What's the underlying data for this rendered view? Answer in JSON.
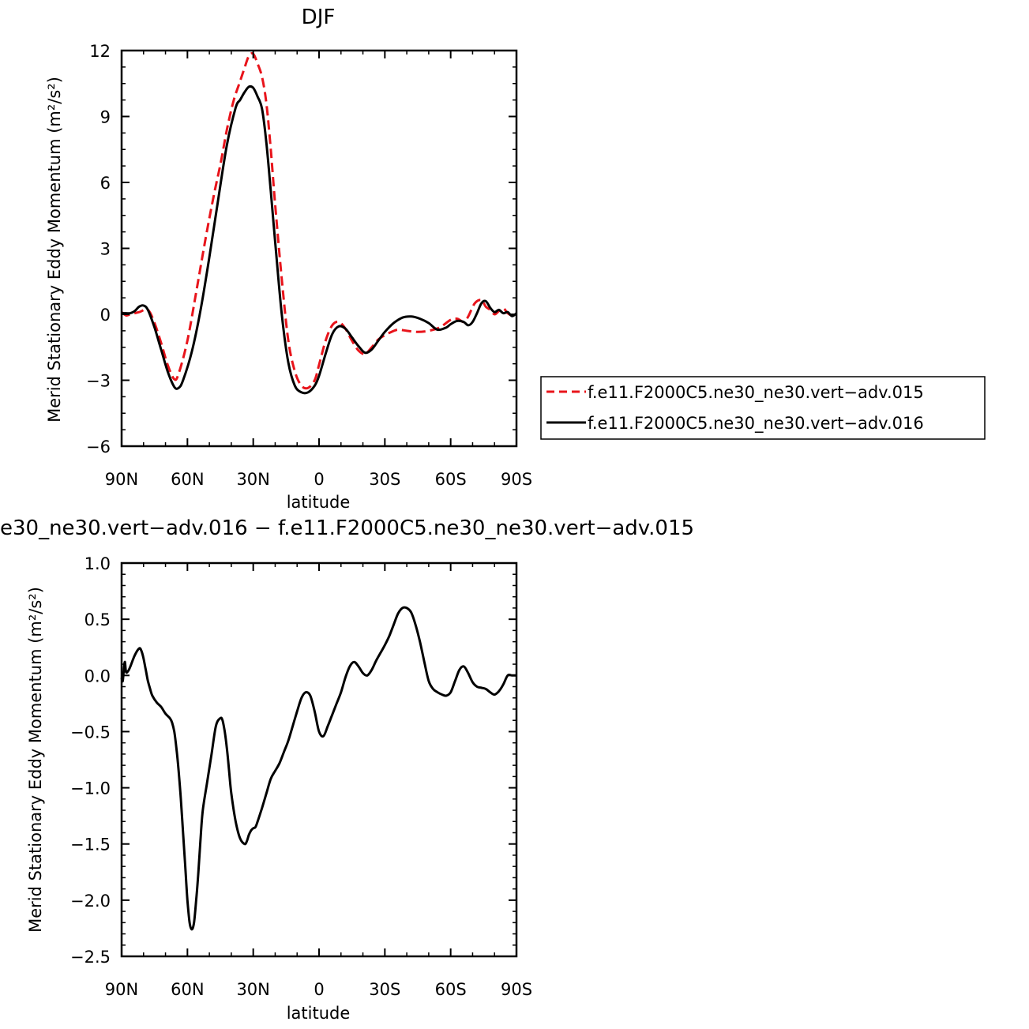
{
  "chart_data": [
    {
      "type": "line",
      "title": "DJF",
      "xlabel": "latitude",
      "ylabel": "Merid Stationary Eddy Momentum (m²/s²)",
      "xlim": [
        90,
        -90
      ],
      "ylim": [
        -6,
        12
      ],
      "xticks": [
        90,
        60,
        30,
        0,
        -30,
        -60,
        -90
      ],
      "xtick_labels": [
        "90N",
        "60N",
        "30N",
        "0",
        "30S",
        "60S",
        "90S"
      ],
      "yticks": [
        -6,
        -3,
        0,
        3,
        6,
        9,
        12
      ],
      "ytick_labels": [
        "−6",
        "−3",
        "0",
        "3",
        "6",
        "9",
        "12"
      ],
      "legend_position": "right",
      "series": [
        {
          "name": "f.e11.F2000C5.ne30_ne30.vert−adv.015",
          "color": "#e8141b",
          "dash": "dashed",
          "x": [
            90,
            88,
            86,
            82,
            78,
            75,
            72,
            69,
            66,
            64,
            60,
            56,
            52,
            48,
            45,
            42,
            39,
            36,
            34,
            32,
            30,
            28,
            26,
            24,
            22,
            20,
            17,
            14,
            11,
            8,
            5,
            2,
            0,
            -3,
            -6,
            -9,
            -12,
            -15,
            -18,
            -21,
            -24,
            -27,
            -30,
            -33,
            -36,
            -40,
            -45,
            -50,
            -55,
            -60,
            -63,
            -66,
            -68,
            -71,
            -74,
            -76,
            -78,
            -80,
            -82,
            -84,
            -86,
            -88,
            -90
          ],
          "y": [
            0.1,
            -0.05,
            0.0,
            0.1,
            0.2,
            -0.4,
            -1.3,
            -2.3,
            -2.95,
            -2.7,
            -1.2,
            1.0,
            3.3,
            5.4,
            6.8,
            8.4,
            9.7,
            10.6,
            11.2,
            11.75,
            11.85,
            11.4,
            10.8,
            9.6,
            7.5,
            5.0,
            1.6,
            -1.2,
            -2.6,
            -3.25,
            -3.35,
            -3.0,
            -2.3,
            -1.2,
            -0.5,
            -0.35,
            -0.65,
            -1.2,
            -1.65,
            -1.8,
            -1.5,
            -1.15,
            -0.95,
            -0.8,
            -0.7,
            -0.75,
            -0.8,
            -0.75,
            -0.6,
            -0.25,
            -0.2,
            -0.35,
            -0.1,
            0.5,
            0.65,
            0.35,
            0.2,
            0.0,
            0.15,
            0.28,
            0.05,
            -0.05,
            0.0
          ]
        },
        {
          "name": "f.e11.F2000C5.ne30_ne30.vert−adv.016",
          "color": "#000000",
          "dash": "solid",
          "x": [
            90,
            88,
            86,
            84,
            82,
            80,
            78,
            75,
            72,
            69,
            66,
            64,
            62,
            58,
            54,
            50,
            46,
            42,
            38,
            36,
            34,
            32,
            30,
            28,
            26,
            24,
            22,
            20,
            17,
            14,
            11,
            8,
            5,
            2,
            0,
            -3,
            -6,
            -9,
            -12,
            -15,
            -18,
            -21,
            -24,
            -27,
            -30,
            -34,
            -38,
            -42,
            -46,
            -50,
            -54,
            -58,
            -60,
            -63,
            -66,
            -68,
            -70,
            -72,
            -74,
            -76,
            -78,
            -80,
            -82,
            -84,
            -86,
            -88,
            -90
          ],
          "y": [
            0.05,
            0.05,
            0.05,
            0.15,
            0.35,
            0.4,
            0.2,
            -0.6,
            -1.6,
            -2.6,
            -3.3,
            -3.35,
            -3.0,
            -1.7,
            0.2,
            2.6,
            5.2,
            7.7,
            9.4,
            9.75,
            10.1,
            10.35,
            10.3,
            9.9,
            9.35,
            7.8,
            5.6,
            3.3,
            0.0,
            -2.2,
            -3.25,
            -3.55,
            -3.55,
            -3.25,
            -2.8,
            -1.8,
            -0.9,
            -0.55,
            -0.65,
            -1.05,
            -1.45,
            -1.75,
            -1.6,
            -1.2,
            -0.8,
            -0.4,
            -0.15,
            -0.1,
            -0.2,
            -0.4,
            -0.7,
            -0.6,
            -0.45,
            -0.3,
            -0.35,
            -0.5,
            -0.35,
            0.05,
            0.5,
            0.6,
            0.3,
            0.1,
            0.2,
            0.05,
            0.1,
            -0.08,
            0.05
          ]
        }
      ]
    },
    {
      "type": "line",
      "title": "e30_ne30.vert−adv.016 − f.e11.F2000C5.ne30_ne30.vert−adv.015",
      "xlabel": "latitude",
      "ylabel": "Merid Stationary Eddy Momentum (m²/s²)",
      "xlim": [
        90,
        -90
      ],
      "ylim": [
        -2.5,
        1.0
      ],
      "xticks": [
        90,
        60,
        30,
        0,
        -30,
        -60,
        -90
      ],
      "xtick_labels": [
        "90N",
        "60N",
        "30N",
        "0",
        "30S",
        "60S",
        "90S"
      ],
      "yticks": [
        -2.5,
        -2.0,
        -1.5,
        -1.0,
        -0.5,
        0.0,
        0.5,
        1.0
      ],
      "ytick_labels": [
        "−2.5",
        "−2.0",
        "−1.5",
        "−1.0",
        "−0.5",
        "0.0",
        "0.5",
        "1.0"
      ],
      "series": [
        {
          "color": "#000000",
          "dash": "solid",
          "x": [
            90,
            89.5,
            89,
            88.5,
            88,
            87,
            86,
            84,
            82,
            81,
            80,
            79,
            78,
            77,
            76,
            74,
            72,
            70,
            68,
            67,
            66,
            65,
            64,
            63,
            62,
            61,
            60,
            59,
            58,
            57,
            56,
            55,
            54,
            53,
            51,
            49,
            47,
            45,
            44,
            43,
            42,
            41,
            40,
            38,
            36,
            34,
            33,
            32,
            31,
            30,
            29,
            28,
            26,
            24,
            22,
            20,
            18,
            16,
            14,
            12,
            10,
            8,
            6,
            4,
            2,
            0,
            -2,
            -4,
            -6,
            -8,
            -10,
            -12,
            -14,
            -16,
            -18,
            -20,
            -22,
            -24,
            -26,
            -28,
            -30,
            -32,
            -34,
            -36,
            -38,
            -40,
            -42,
            -44,
            -46,
            -48,
            -50,
            -52,
            -54,
            -56,
            -58,
            -60,
            -62,
            -64,
            -66,
            -68,
            -70,
            -72,
            -74,
            -76,
            -78,
            -80,
            -82,
            -84,
            -86,
            -88,
            -90
          ],
          "y": [
            -0.02,
            -0.05,
            0.05,
            0.12,
            0.03,
            0.04,
            0.08,
            0.18,
            0.24,
            0.22,
            0.15,
            0.05,
            -0.05,
            -0.12,
            -0.18,
            -0.24,
            -0.28,
            -0.34,
            -0.38,
            -0.42,
            -0.5,
            -0.65,
            -0.85,
            -1.1,
            -1.4,
            -1.7,
            -2.0,
            -2.2,
            -2.26,
            -2.2,
            -2.0,
            -1.75,
            -1.45,
            -1.2,
            -0.95,
            -0.7,
            -0.45,
            -0.38,
            -0.4,
            -0.5,
            -0.65,
            -0.85,
            -1.05,
            -1.3,
            -1.45,
            -1.5,
            -1.48,
            -1.42,
            -1.38,
            -1.36,
            -1.35,
            -1.3,
            -1.18,
            -1.05,
            -0.92,
            -0.85,
            -0.78,
            -0.68,
            -0.58,
            -0.45,
            -0.32,
            -0.2,
            -0.15,
            -0.18,
            -0.32,
            -0.5,
            -0.54,
            -0.45,
            -0.35,
            -0.25,
            -0.15,
            -0.02,
            0.08,
            0.12,
            0.08,
            0.02,
            0.0,
            0.05,
            0.13,
            0.2,
            0.27,
            0.35,
            0.45,
            0.55,
            0.6,
            0.6,
            0.56,
            0.45,
            0.3,
            0.12,
            -0.05,
            -0.12,
            -0.15,
            -0.17,
            -0.18,
            -0.15,
            -0.05,
            0.05,
            0.08,
            0.02,
            -0.06,
            -0.1,
            -0.11,
            -0.12,
            -0.15,
            -0.17,
            -0.14,
            -0.08,
            0.0,
            0.0,
            0.0
          ]
        }
      ]
    }
  ]
}
